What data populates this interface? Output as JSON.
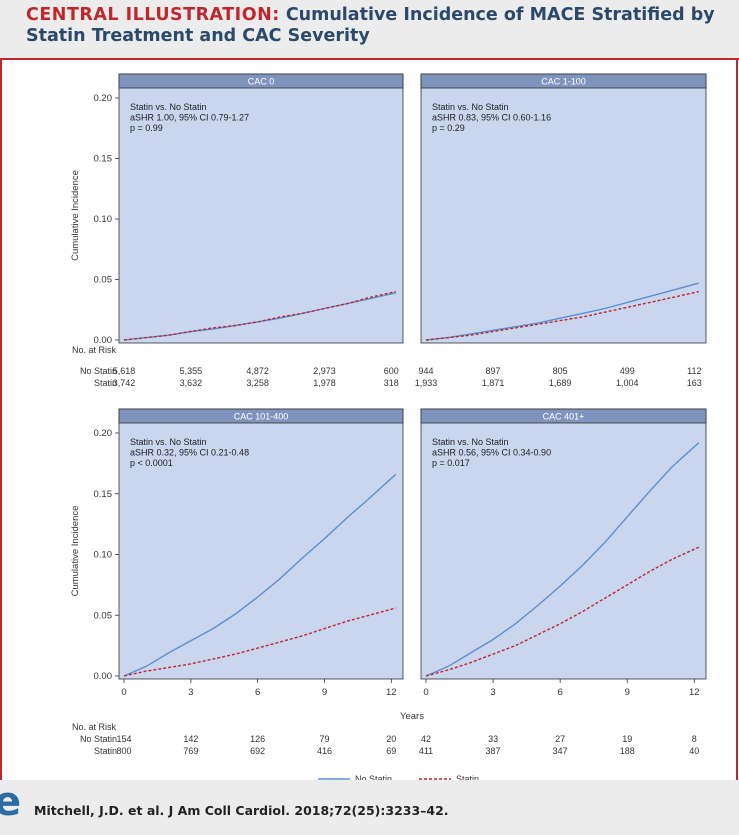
{
  "figure": {
    "title_lead": "CENTRAL ILLUSTRATION:",
    "title_rest": "Cumulative Incidence of MACE Stratified by Statin Treatment and CAC Severity",
    "title_line2": "Statin Treatment and CAC Severity",
    "citation": "Mitchell, J.D. et al. J Am Coll Cardiol. 2018;72(25):3233–42.",
    "logo_text": "e"
  },
  "chart_data": {
    "type": "line",
    "xlabel": "Years",
    "ylabel": "Cumulative Incidence",
    "xlim": [
      0,
      12.3
    ],
    "ylim": [
      0,
      0.2
    ],
    "x_ticks": [
      "0",
      "3",
      "6",
      "9",
      "12"
    ],
    "y_ticks": [
      "0.00",
      "0.05",
      "0.10",
      "0.15",
      "0.20"
    ],
    "risk_table_title": "No. at Risk",
    "risk_rows": [
      "No Statin",
      "Statin"
    ],
    "legend": [
      {
        "name": "No Statin",
        "color": "#5b8fd0",
        "style": "solid"
      },
      {
        "name": "Statin",
        "color": "#c0272d",
        "style": "dashed"
      }
    ],
    "colors": {
      "panel_bg": "#c9d6ee",
      "panel_header": "#7f94bd",
      "no_statin": "#5b8fd0",
      "statin": "#c0272d"
    },
    "panels": [
      {
        "title": "CAC 0",
        "stats": [
          "Statin vs. No Statin",
          "aSHR 1.00, 95% CI 0.79-1.27",
          "p = 0.99"
        ],
        "series": [
          {
            "name": "No Statin",
            "x": [
              0,
              1,
              2,
              3,
              4,
              5,
              6,
              7,
              8,
              9,
              10,
              11,
              12.2
            ],
            "y": [
              0,
              0.002,
              0.004,
              0.007,
              0.009,
              0.012,
              0.015,
              0.018,
              0.022,
              0.026,
              0.03,
              0.034,
              0.039
            ]
          },
          {
            "name": "Statin",
            "x": [
              0,
              1,
              2,
              3,
              4,
              5,
              6,
              7,
              8,
              9,
              10,
              11,
              12.2
            ],
            "y": [
              0,
              0.002,
              0.004,
              0.007,
              0.01,
              0.012,
              0.015,
              0.019,
              0.022,
              0.026,
              0.03,
              0.035,
              0.04
            ]
          }
        ],
        "risk": {
          "No Statin": [
            "5,618",
            "5,355",
            "4,872",
            "2,973",
            "600"
          ],
          "Statin": [
            "3,742",
            "3,632",
            "3,258",
            "1,978",
            "318"
          ]
        }
      },
      {
        "title": "CAC 1-100",
        "stats": [
          "Statin vs. No Statin",
          "aSHR 0.83, 95% CI 0.60-1.16",
          "p = 0.29"
        ],
        "series": [
          {
            "name": "No Statin",
            "x": [
              0,
              1,
              2,
              3,
              4,
              5,
              6,
              7,
              8,
              9,
              10,
              11,
              12.2
            ],
            "y": [
              0,
              0.002,
              0.005,
              0.008,
              0.011,
              0.014,
              0.018,
              0.022,
              0.026,
              0.031,
              0.036,
              0.041,
              0.047
            ]
          },
          {
            "name": "Statin",
            "x": [
              0,
              1,
              2,
              3,
              4,
              5,
              6,
              7,
              8,
              9,
              10,
              11,
              12.2
            ],
            "y": [
              0,
              0.002,
              0.004,
              0.007,
              0.01,
              0.013,
              0.016,
              0.019,
              0.023,
              0.027,
              0.031,
              0.035,
              0.04
            ]
          }
        ],
        "risk": {
          "No Statin": [
            "944",
            "897",
            "805",
            "499",
            "112"
          ],
          "Statin": [
            "1,933",
            "1,871",
            "1,689",
            "1,004",
            "163"
          ]
        }
      },
      {
        "title": "CAC 101-400",
        "stats": [
          "Statin vs. No Statin",
          "aSHR 0.32, 95% CI 0.21-0.48",
          "p < 0.0001"
        ],
        "series": [
          {
            "name": "No Statin",
            "x": [
              0,
              1,
              2,
              3,
              4,
              5,
              6,
              7,
              8,
              9,
              10,
              11,
              12.2
            ],
            "y": [
              0,
              0.008,
              0.019,
              0.029,
              0.039,
              0.051,
              0.065,
              0.08,
              0.097,
              0.113,
              0.13,
              0.146,
              0.166
            ]
          },
          {
            "name": "Statin",
            "x": [
              0,
              1,
              2,
              3,
              4,
              5,
              6,
              7,
              8,
              9,
              10,
              11,
              12.2
            ],
            "y": [
              0,
              0.004,
              0.007,
              0.01,
              0.014,
              0.018,
              0.023,
              0.028,
              0.033,
              0.039,
              0.045,
              0.05,
              0.056
            ]
          }
        ],
        "risk": {
          "No Statin": [
            "154",
            "142",
            "126",
            "79",
            "20"
          ],
          "Statin": [
            "800",
            "769",
            "692",
            "416",
            "69"
          ]
        }
      },
      {
        "title": "CAC 401+",
        "stats": [
          "Statin vs. No Statin",
          "aSHR 0.56, 95% CI 0.34-0.90",
          "p = 0.017"
        ],
        "series": [
          {
            "name": "No Statin",
            "x": [
              0,
              1,
              2,
              3,
              4,
              5,
              6,
              7,
              8,
              9,
              10,
              11,
              12.2
            ],
            "y": [
              0,
              0.008,
              0.019,
              0.03,
              0.043,
              0.058,
              0.074,
              0.091,
              0.11,
              0.131,
              0.152,
              0.172,
              0.192
            ]
          },
          {
            "name": "Statin",
            "x": [
              0,
              1,
              2,
              3,
              4,
              5,
              6,
              7,
              8,
              9,
              10,
              11,
              12.2
            ],
            "y": [
              0,
              0.005,
              0.011,
              0.018,
              0.025,
              0.034,
              0.043,
              0.053,
              0.064,
              0.075,
              0.086,
              0.096,
              0.106
            ]
          }
        ],
        "risk": {
          "No Statin": [
            "42",
            "33",
            "27",
            "19",
            "8"
          ],
          "Statin": [
            "411",
            "387",
            "347",
            "188",
            "40"
          ]
        }
      }
    ]
  }
}
